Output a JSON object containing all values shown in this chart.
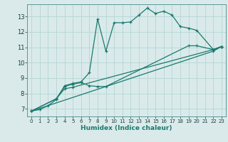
{
  "xlabel": "Humidex (Indice chaleur)",
  "bg_color": "#daeaea",
  "line_color": "#1a7a6e",
  "grid_color": "#b8d8d8",
  "xlim": [
    -0.5,
    23.5
  ],
  "ylim": [
    6.5,
    13.8
  ],
  "yticks": [
    7,
    8,
    9,
    10,
    11,
    12,
    13
  ],
  "xticks": [
    0,
    1,
    2,
    3,
    4,
    5,
    6,
    7,
    8,
    9,
    10,
    11,
    12,
    13,
    14,
    15,
    16,
    17,
    18,
    19,
    20,
    21,
    22,
    23
  ],
  "series": [
    {
      "x": [
        0,
        1,
        2,
        3,
        4,
        5,
        6,
        7,
        8,
        9,
        10,
        11,
        12,
        13,
        14,
        15,
        16,
        17,
        18,
        19,
        20,
        22,
        23
      ],
      "y": [
        6.85,
        6.95,
        7.2,
        7.6,
        8.5,
        8.65,
        8.75,
        9.35,
        12.85,
        10.75,
        12.6,
        12.6,
        12.65,
        13.1,
        13.55,
        13.2,
        13.35,
        13.1,
        12.35,
        12.25,
        12.1,
        10.85,
        11.05
      ]
    },
    {
      "x": [
        0,
        3,
        4,
        5,
        6,
        7,
        8,
        9,
        19,
        20,
        22,
        23
      ],
      "y": [
        6.85,
        7.65,
        8.45,
        8.6,
        8.7,
        8.5,
        8.45,
        8.45,
        11.1,
        11.1,
        10.85,
        11.05
      ]
    },
    {
      "x": [
        0,
        3,
        4,
        5,
        22,
        23
      ],
      "y": [
        6.85,
        7.65,
        8.3,
        8.4,
        10.85,
        11.05
      ]
    },
    {
      "x": [
        0,
        22,
        23
      ],
      "y": [
        6.85,
        10.75,
        11.05
      ]
    }
  ]
}
